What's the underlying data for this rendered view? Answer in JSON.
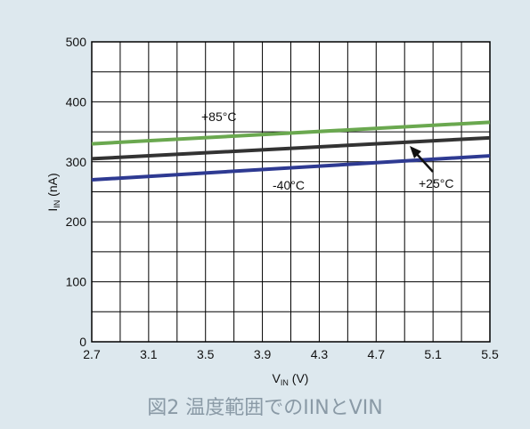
{
  "caption": "図2 温度範囲でのIINとVIN",
  "chart_data": {
    "type": "line",
    "title": "",
    "xlabel": {
      "main": "V",
      "sub": "IN",
      "unit": " (V)"
    },
    "ylabel": {
      "main": "I",
      "sub": "IN",
      "unit": " (nA)"
    },
    "xlim": [
      2.7,
      5.5
    ],
    "ylim": [
      0,
      500
    ],
    "x_ticks": [
      "2.7",
      "3.1",
      "3.5",
      "3.9",
      "4.3",
      "4.7",
      "5.1",
      "5.5"
    ],
    "y_ticks": [
      "0",
      "100",
      "200",
      "300",
      "400",
      "500"
    ],
    "grid": true,
    "series": [
      {
        "name": "+85°C",
        "color": "#6aa84f",
        "x": [
          2.7,
          5.5
        ],
        "y": [
          330,
          366
        ]
      },
      {
        "name": "+25°C",
        "color": "#333333",
        "x": [
          2.7,
          5.5
        ],
        "y": [
          305,
          340
        ]
      },
      {
        "name": "-40°C",
        "color": "#2e3a92",
        "x": [
          2.7,
          5.5
        ],
        "y": [
          270,
          310
        ]
      }
    ]
  }
}
